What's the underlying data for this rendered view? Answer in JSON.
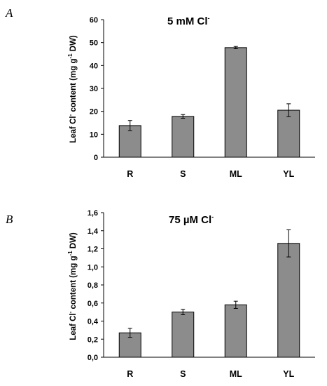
{
  "chart_data": [
    {
      "type": "bar",
      "panel_letter": "A",
      "title": "5 mM Cl",
      "title_sup": "-",
      "ylabel": {
        "pre": "Leaf Cl",
        "sup1": "-",
        "mid": " content (mg g",
        "sup2": "-1",
        "post": " DW)"
      },
      "categories": [
        "R",
        "S",
        "ML",
        "YL"
      ],
      "values": [
        13.8,
        17.8,
        47.8,
        20.5
      ],
      "errors": [
        2.2,
        0.8,
        0.5,
        2.8
      ],
      "ylim": [
        0,
        60
      ],
      "yticks": [
        0,
        10,
        20,
        30,
        40,
        50,
        60
      ],
      "ytick_labels": [
        "0",
        "10",
        "20",
        "30",
        "40",
        "50",
        "60"
      ],
      "bar_color": "#8c8c8c",
      "grid": false,
      "legend": "none"
    },
    {
      "type": "bar",
      "panel_letter": "B",
      "title": "75 µM Cl",
      "title_sup": "-",
      "ylabel": {
        "pre": "Leaf Cl",
        "sup1": "-",
        "mid": " content (mg g",
        "sup2": "-1",
        "post": " DW)"
      },
      "categories": [
        "R",
        "S",
        "ML",
        "YL"
      ],
      "values": [
        0.27,
        0.5,
        0.58,
        1.26
      ],
      "errors": [
        0.05,
        0.03,
        0.04,
        0.15
      ],
      "ylim": [
        0,
        1.6
      ],
      "yticks": [
        0,
        0.2,
        0.4,
        0.6,
        0.8,
        1.0,
        1.2,
        1.4,
        1.6
      ],
      "ytick_labels": [
        "0,0",
        "0,2",
        "0,4",
        "0,6",
        "0,8",
        "1,0",
        "1,2",
        "1,4",
        "1,6"
      ],
      "bar_color": "#8c8c8c",
      "grid": false,
      "legend": "none"
    }
  ]
}
